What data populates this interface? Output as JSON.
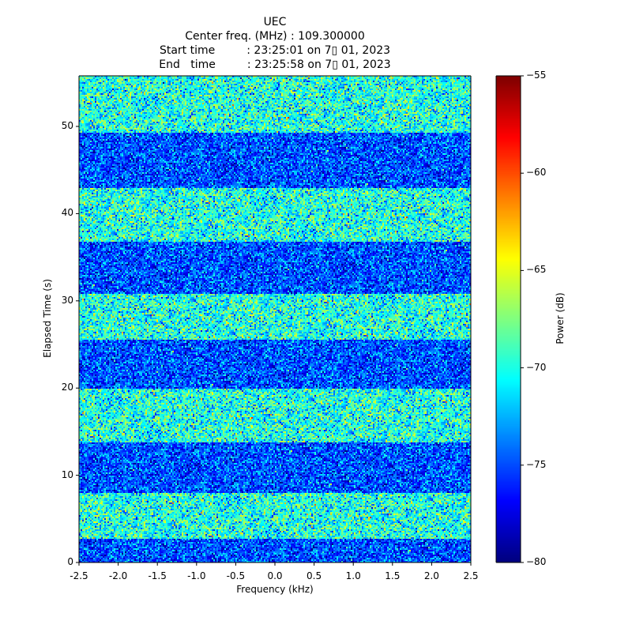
{
  "chart_data": {
    "type": "heatmap",
    "title_lines": [
      "UEC",
      "Center freq. (MHz) : 109.300000",
      "Start time         : 23:25:01 on 7▯ 01, 2023",
      "End   time         : 23:25:58 on 7▯ 01, 2023"
    ],
    "xlabel": "Frequency (kHz)",
    "ylabel": "Elapsed Time (s)",
    "xlim": [
      -2.5,
      2.5
    ],
    "ylim": [
      0,
      55.8
    ],
    "xticks": [
      "-2.5",
      "-2.0",
      "-1.5",
      "-1.0",
      "-0.5",
      "0.0",
      "0.5",
      "1.0",
      "1.5",
      "2.0",
      "2.5"
    ],
    "yticks": [
      "0",
      "10",
      "20",
      "30",
      "40",
      "50"
    ],
    "colorbar": {
      "label": "Power (dB)",
      "range": [
        -80,
        -55
      ],
      "ticks": [
        "−55",
        "−60",
        "−65",
        "−70",
        "−75",
        "−80"
      ],
      "colormap": "jet"
    },
    "bands": [
      {
        "t0": 0,
        "t1": 2.8,
        "level": "low",
        "mean_db": -75
      },
      {
        "t0": 2.8,
        "t1": 8.0,
        "level": "high",
        "mean_db": -70
      },
      {
        "t0": 8.0,
        "t1": 13.8,
        "level": "low",
        "mean_db": -75
      },
      {
        "t0": 13.8,
        "t1": 19.9,
        "level": "high",
        "mean_db": -70
      },
      {
        "t0": 19.9,
        "t1": 25.6,
        "level": "low",
        "mean_db": -75
      },
      {
        "t0": 25.6,
        "t1": 30.8,
        "level": "high",
        "mean_db": -70
      },
      {
        "t0": 30.8,
        "t1": 36.8,
        "level": "low",
        "mean_db": -75
      },
      {
        "t0": 36.8,
        "t1": 42.9,
        "level": "high",
        "mean_db": -70
      },
      {
        "t0": 42.9,
        "t1": 49.3,
        "level": "low",
        "mean_db": -75
      },
      {
        "t0": 49.3,
        "t1": 55.8,
        "level": "high",
        "mean_db": -70
      }
    ]
  }
}
